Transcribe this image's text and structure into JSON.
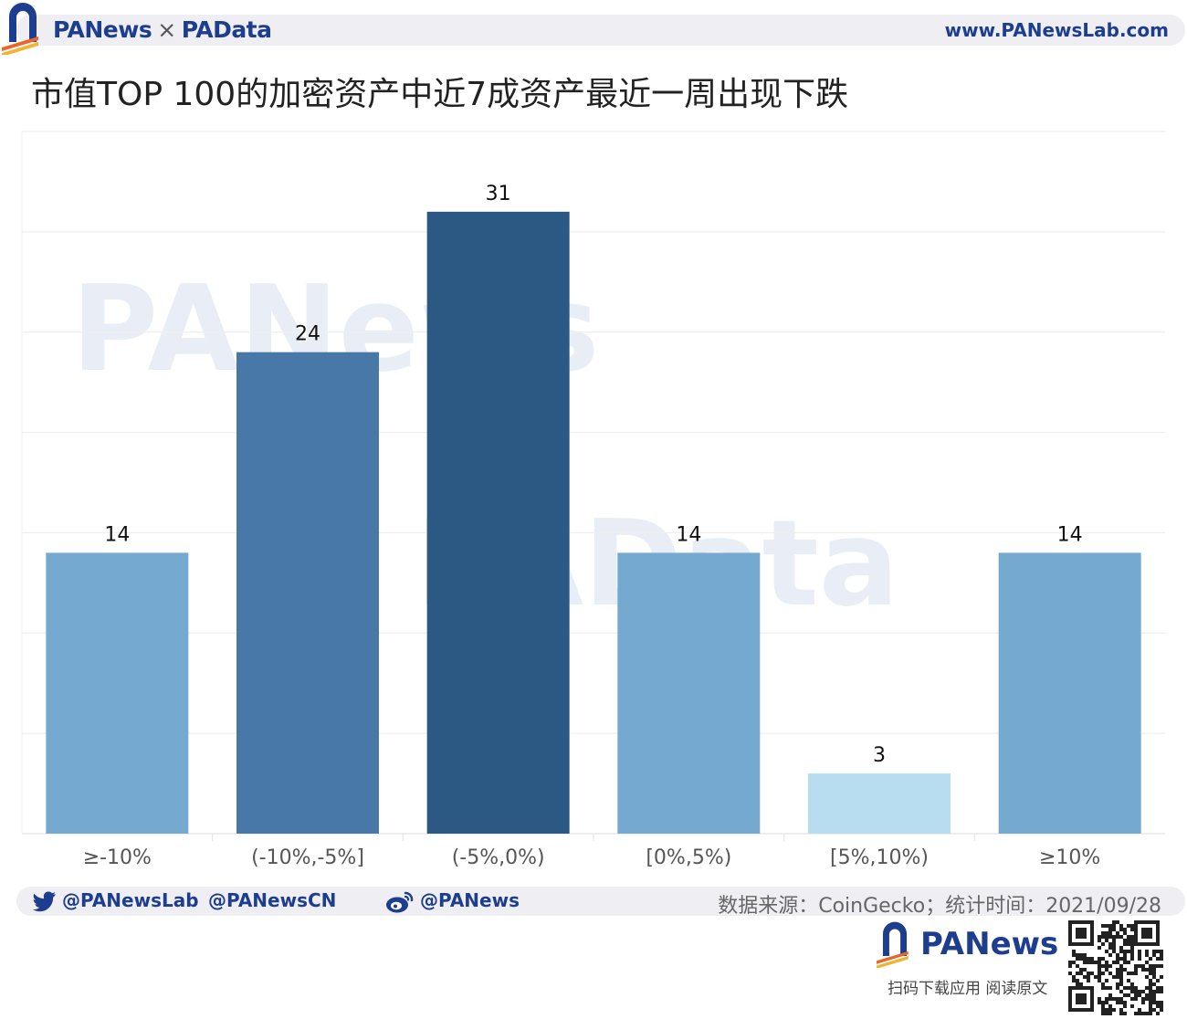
{
  "header": {
    "brand_left": "PANews",
    "brand_sep": "×",
    "brand_right": "PAData",
    "site_url": "www.PANewsLab.com"
  },
  "title": "市值TOP 100的加密资产中近7成资产最近一周出现下跌",
  "colors": {
    "brand": "#1d3d8f",
    "bar_light": "#76a9cf",
    "bar_mid": "#4878a8",
    "bar_dark": "#2c5984",
    "bar_lightest": "#b8ddf0"
  },
  "chart_data": {
    "type": "bar",
    "title": "市值TOP 100的加密资产中近7成资产最近一周出现下跌",
    "categories": [
      "≥-10%",
      "(-10%,-5%]",
      "(-5%,0%)",
      "[0%,5%)",
      "[5%,10%)",
      "≥10%"
    ],
    "values": [
      14,
      24,
      31,
      14,
      3,
      14
    ],
    "bar_colors": [
      "#76a9cf",
      "#4878a8",
      "#2c5984",
      "#76a9cf",
      "#b8ddf0",
      "#76a9cf"
    ],
    "xlabel": "",
    "ylabel": "",
    "ylim": [
      0,
      35
    ],
    "grid": true,
    "data_labels": true
  },
  "watermarks": [
    "PANews",
    "PAData"
  ],
  "footer": {
    "twitter_1": "@PANewsLab",
    "twitter_2": "@PANewsCN",
    "weibo": "@PANews",
    "source": "数据来源：CoinGecko；统计时间：2021/09/28",
    "brand": "PANews",
    "cta": "扫码下载应用  阅读原文"
  }
}
